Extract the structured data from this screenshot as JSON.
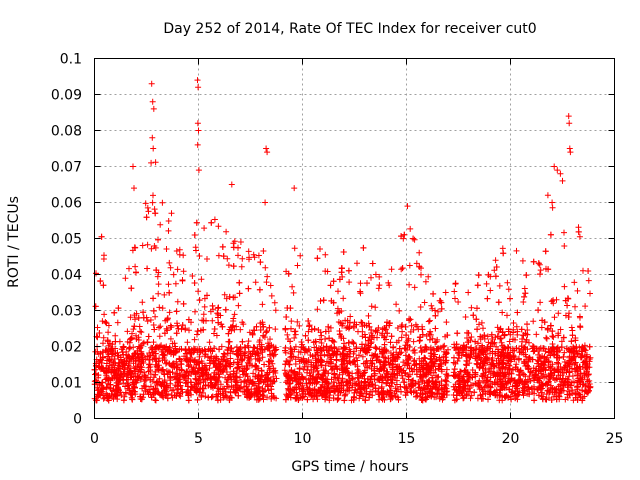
{
  "chart_data": {
    "type": "scatter",
    "title": "Day 252 of 2014, Rate Of TEC Index for receiver cut0",
    "xlabel": "GPS time / hours",
    "ylabel": "ROTI / TECUs",
    "xlim": [
      0,
      25
    ],
    "ylim": [
      0,
      0.1
    ],
    "x_ticks": [
      0,
      5,
      10,
      15,
      20,
      25
    ],
    "y_ticks": [
      0,
      0.01,
      0.02,
      0.03,
      0.04,
      0.05,
      0.06,
      0.07,
      0.08,
      0.09,
      0.1
    ],
    "x_tick_labels": [
      "0",
      "5",
      "10",
      "15",
      "20",
      "25"
    ],
    "y_tick_labels": [
      "0",
      "0.01",
      "0.02",
      "0.03",
      "0.04",
      "0.05",
      "0.06",
      "0.07",
      "0.08",
      "0.09",
      "0.1"
    ],
    "grid": true,
    "marker": "+",
    "marker_color": "#ff0000",
    "data_gaps_hours": [
      [
        8.75,
        9.15
      ],
      [
        17.0,
        17.25
      ]
    ],
    "envelope": {
      "x": [
        0,
        0.5,
        1,
        1.5,
        2,
        2.5,
        3,
        3.5,
        4,
        4.5,
        5,
        5.5,
        6,
        6.5,
        7,
        7.5,
        8,
        8.5,
        9.2,
        9.5,
        10,
        10.5,
        11,
        11.5,
        12,
        12.5,
        13,
        13.5,
        14,
        14.5,
        15,
        15.5,
        16,
        16.5,
        17,
        17.3,
        17.5,
        18,
        18.5,
        19,
        19.5,
        20,
        20.5,
        21,
        21.5,
        22,
        22.5,
        23,
        23.5,
        23.85
      ],
      "upper": [
        0.046,
        0.055,
        0.03,
        0.04,
        0.055,
        0.062,
        0.075,
        0.055,
        0.056,
        0.05,
        0.06,
        0.058,
        0.056,
        0.052,
        0.05,
        0.046,
        0.05,
        0.042,
        0.058,
        0.05,
        0.054,
        0.05,
        0.052,
        0.045,
        0.05,
        0.054,
        0.05,
        0.048,
        0.05,
        0.046,
        0.058,
        0.048,
        0.045,
        0.04,
        0.036,
        0.038,
        0.038,
        0.045,
        0.042,
        0.04,
        0.048,
        0.046,
        0.048,
        0.05,
        0.05,
        0.06,
        0.065,
        0.062,
        0.048,
        0.04
      ]
    },
    "spikes": [
      {
        "x": 2.75,
        "y": 0.093
      },
      {
        "x": 2.8,
        "y": 0.088
      },
      {
        "x": 2.85,
        "y": 0.086
      },
      {
        "x": 2.78,
        "y": 0.078
      },
      {
        "x": 2.82,
        "y": 0.075
      },
      {
        "x": 2.72,
        "y": 0.071
      },
      {
        "x": 4.95,
        "y": 0.094
      },
      {
        "x": 4.98,
        "y": 0.092
      },
      {
        "x": 4.97,
        "y": 0.082
      },
      {
        "x": 5.0,
        "y": 0.08
      },
      {
        "x": 4.96,
        "y": 0.076
      },
      {
        "x": 5.02,
        "y": 0.069
      },
      {
        "x": 1.85,
        "y": 0.07
      },
      {
        "x": 1.9,
        "y": 0.064
      },
      {
        "x": 6.6,
        "y": 0.065
      },
      {
        "x": 8.25,
        "y": 0.075
      },
      {
        "x": 8.3,
        "y": 0.074
      },
      {
        "x": 8.2,
        "y": 0.06
      },
      {
        "x": 9.6,
        "y": 0.064
      },
      {
        "x": 3.7,
        "y": 0.057
      },
      {
        "x": 15.05,
        "y": 0.059
      },
      {
        "x": 22.1,
        "y": 0.07
      },
      {
        "x": 22.25,
        "y": 0.069
      },
      {
        "x": 22.4,
        "y": 0.068
      },
      {
        "x": 22.5,
        "y": 0.066
      },
      {
        "x": 22.8,
        "y": 0.084
      },
      {
        "x": 22.82,
        "y": 0.082
      },
      {
        "x": 22.85,
        "y": 0.075
      },
      {
        "x": 22.88,
        "y": 0.074
      },
      {
        "x": 21.8,
        "y": 0.062
      },
      {
        "x": 22.0,
        "y": 0.06
      }
    ]
  }
}
